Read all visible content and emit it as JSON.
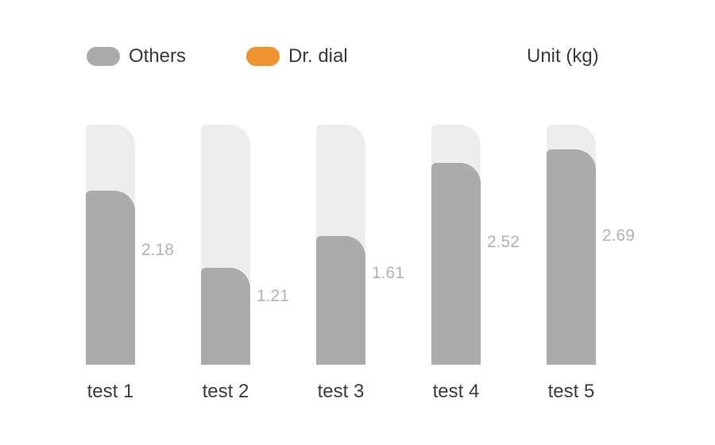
{
  "legend": {
    "items": [
      {
        "label": "Others",
        "color": "#ababab"
      },
      {
        "label": "Dr. dial",
        "color": "#ef9331"
      }
    ]
  },
  "unit_label": "Unit (kg)",
  "chart_data": {
    "type": "bar",
    "title": "",
    "categories": [
      "test 1",
      "test 2",
      "test 3",
      "test 4",
      "test 5"
    ],
    "series": [
      {
        "name": "Others",
        "values": [
          2.18,
          1.21,
          1.61,
          2.52,
          2.69
        ]
      },
      {
        "name": "Dr. dial",
        "values": []
      }
    ],
    "value_labels": [
      "2.18",
      "1.21",
      "1.61",
      "2.52",
      "2.69"
    ],
    "unit": "kg",
    "ylim": [
      0,
      3
    ],
    "legend_position": "top",
    "grid": false,
    "colors": {
      "others": "#ababab",
      "dr_dial": "#ef9331",
      "track": "#ededed",
      "value_label": "#b3b3b3",
      "category_text": "#3d3d3d"
    }
  }
}
